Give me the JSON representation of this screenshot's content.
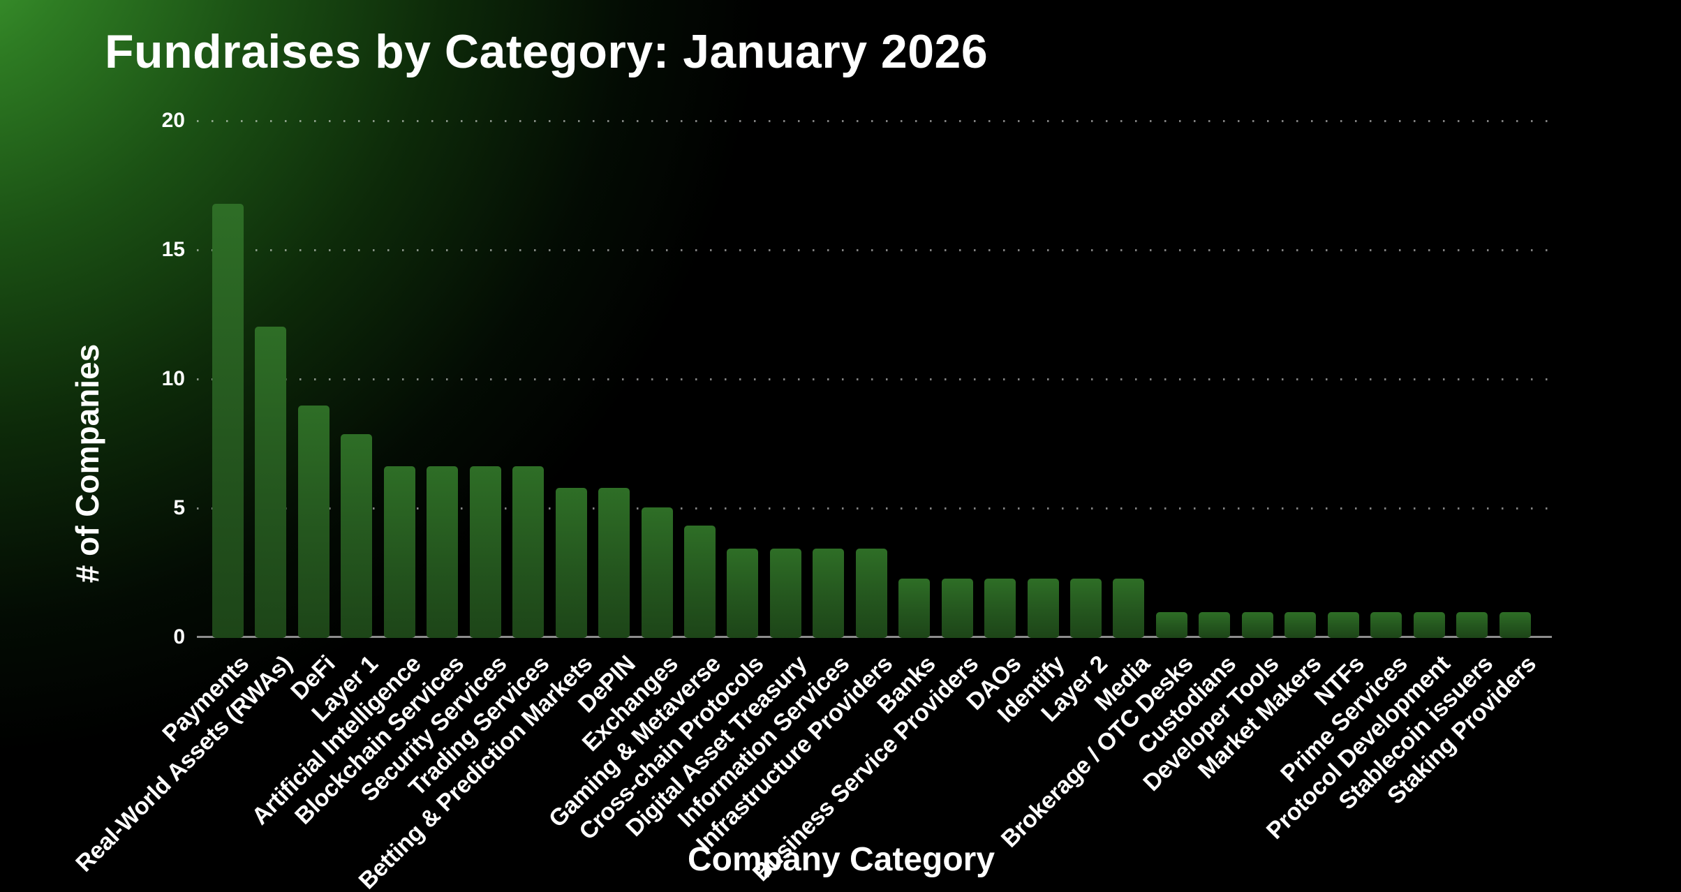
{
  "header": {
    "title": "Fundraises by Category: January 2026"
  },
  "chart_data": {
    "type": "bar",
    "title": "Fundraises by Category: January 2026",
    "xlabel": "Company Category",
    "ylabel": "# of Companies",
    "ylim": [
      0,
      20
    ],
    "yticks": [
      20,
      15,
      10,
      5,
      0
    ],
    "grid": "horizontal dotted",
    "legend": "none",
    "categories": [
      "Payments",
      "Real-World Assets (RWAs)",
      "DeFi",
      "Layer 1",
      "Artificial Intelligence",
      "Blockchain Services",
      "Security Services",
      "Trading Services",
      "Betting & Prediction Markets",
      "DePIN",
      "Exchanges",
      "Gaming & Metaverse",
      "Cross-chain Protocols",
      "Digital Asset Treasury",
      "Information Services",
      "Infrastructure Providers",
      "Banks",
      "Business Service Providers",
      "DAOs",
      "Identify",
      "Layer 2",
      "Media",
      "Brokerage / OTC Desks",
      "Custodians",
      "Developer Tools",
      "Market Makers",
      "NTFs",
      "Prime Services",
      "Protocol Development",
      "Stablecoin issuers",
      "Staking Providers"
    ],
    "values": [
      16.75,
      12,
      8.95,
      7.85,
      6.6,
      6.6,
      6.6,
      6.6,
      5.75,
      5.75,
      5,
      4.3,
      3.4,
      3.4,
      3.4,
      3.4,
      2.25,
      2.25,
      2.25,
      2.25,
      2.25,
      2.25,
      0.95,
      0.95,
      0.95,
      0.95,
      0.95,
      0.95,
      0.95,
      0.95,
      0.95
    ],
    "colors": {
      "background": "#000000",
      "glow_green": "#42a233",
      "bar_top": "#2e6e26",
      "bar_mid": "#24561e",
      "bar_bottom": "#1d4518",
      "axis_line": "#8d8d8d",
      "grid_dots": "rgba(255,255,255,0.5)",
      "text": "#ffffff"
    }
  }
}
